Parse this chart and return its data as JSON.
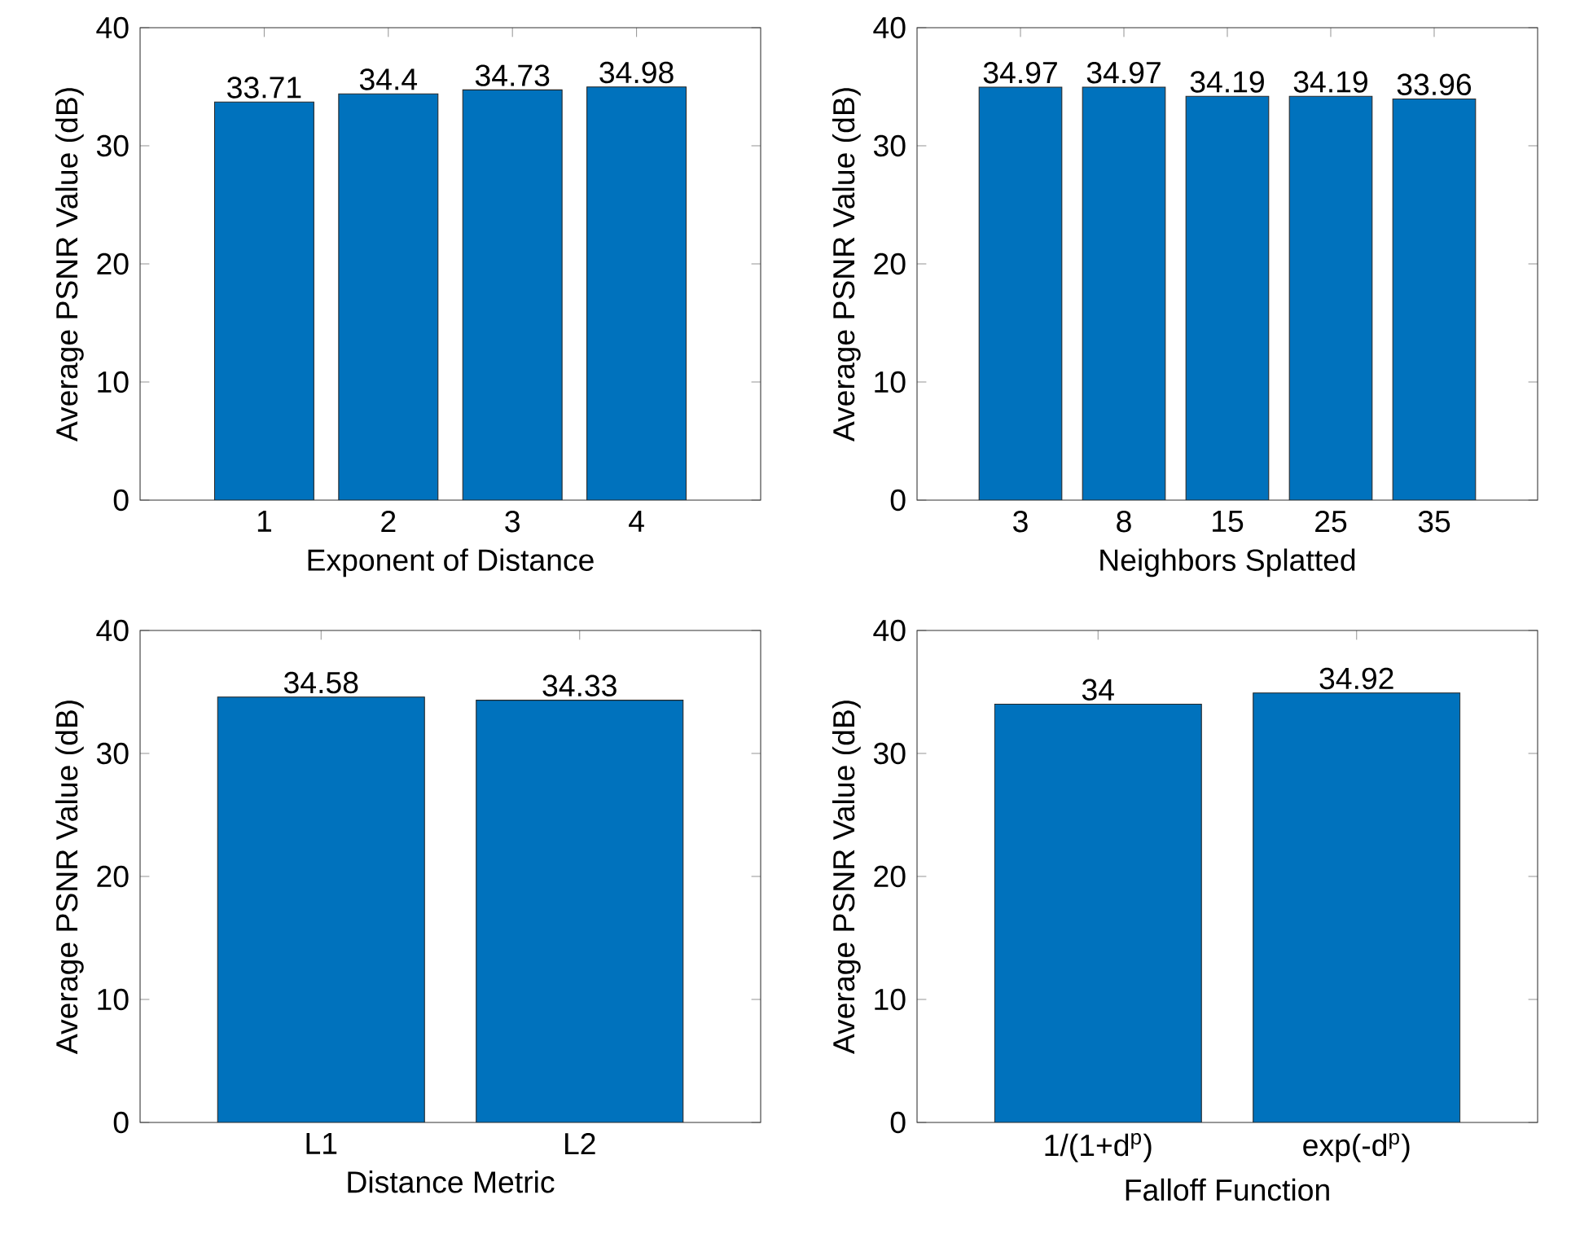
{
  "chart_data": [
    {
      "type": "bar",
      "xlabel": "Exponent of Distance",
      "ylabel": "Average PSNR Value (dB)",
      "categories": [
        "1",
        "2",
        "3",
        "4"
      ],
      "values": [
        33.71,
        34.4,
        34.73,
        34.98
      ],
      "color": "#0072bd",
      "ylim": [
        0,
        40
      ],
      "yticks": [
        0,
        10,
        20,
        30,
        40
      ],
      "data_labels": true
    },
    {
      "type": "bar",
      "xlabel": "Neighbors Splatted",
      "ylabel": "Average PSNR Value (dB)",
      "categories": [
        "3",
        "8",
        "15",
        "25",
        "35"
      ],
      "values": [
        34.97,
        34.97,
        34.19,
        34.19,
        33.96
      ],
      "color": "#0072bd",
      "ylim": [
        0,
        40
      ],
      "yticks": [
        0,
        10,
        20,
        30,
        40
      ],
      "data_labels": true
    },
    {
      "type": "bar",
      "xlabel": "Distance Metric",
      "ylabel": "Average PSNR Value (dB)",
      "categories": [
        "L1",
        "L2"
      ],
      "values": [
        34.58,
        34.33
      ],
      "color": "#0072bd",
      "ylim": [
        0,
        40
      ],
      "yticks": [
        0,
        10,
        20,
        30,
        40
      ],
      "data_labels": true
    },
    {
      "type": "bar",
      "xlabel": "Falloff Function",
      "ylabel": "Average PSNR Value (dB)",
      "categories": [
        "1/(1+d$^{p}$)",
        "exp(-d$^{p}$)"
      ],
      "values": [
        34,
        34.92
      ],
      "color": "#0072bd",
      "ylim": [
        0,
        40
      ],
      "yticks": [
        0,
        10,
        20,
        30,
        40
      ],
      "data_labels": true
    }
  ]
}
